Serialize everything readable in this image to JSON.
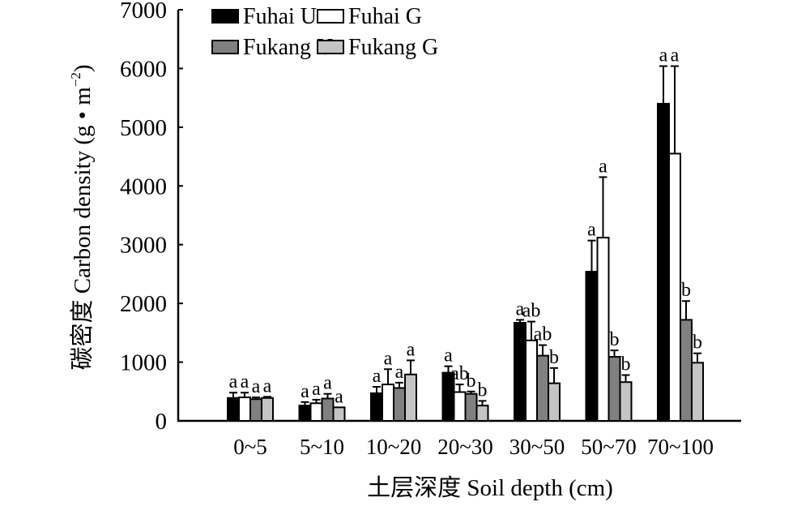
{
  "chart_data": {
    "type": "bar",
    "title": "",
    "xlabel": "土层深度 Soil depth (cm)",
    "ylabel": "碳密度 Carbon density (g • m⁻²)",
    "ylabel_parts": {
      "main": "碳密度 Carbon density (g • m",
      "sup": "−2",
      "close": ")"
    },
    "ylim": [
      0,
      7000
    ],
    "yticks": [
      0,
      1000,
      2000,
      3000,
      4000,
      5000,
      6000,
      7000
    ],
    "grid": false,
    "legend_position": "top-left",
    "categories": [
      "0~5",
      "5~10",
      "10~20",
      "20~30",
      "30~50",
      "50~70",
      "70~100"
    ],
    "series": [
      {
        "name": "Fuhai U",
        "color": "#000000",
        "values": [
          390,
          260,
          470,
          820,
          1670,
          2540,
          5400
        ],
        "error": [
          90,
          60,
          110,
          110,
          50,
          530,
          640
        ],
        "letters": [
          "a",
          "a",
          "a",
          "a",
          "a",
          "a",
          "a"
        ]
      },
      {
        "name": "Fuhai G",
        "color": "#ffffff",
        "values": [
          400,
          300,
          620,
          490,
          1370,
          3120,
          4550
        ],
        "error": [
          80,
          60,
          260,
          130,
          320,
          1030,
          1490
        ],
        "letters": [
          "a",
          "a",
          "a",
          "ab",
          "ab",
          "a",
          "a"
        ]
      },
      {
        "name": "Fukang U",
        "color": "#808080",
        "values": [
          370,
          380,
          560,
          460,
          1110,
          1090,
          1720
        ],
        "error": [
          30,
          80,
          90,
          40,
          180,
          110,
          320
        ],
        "letters": [
          "a",
          "a",
          "a",
          "b",
          "ab",
          "b",
          "b"
        ]
      },
      {
        "name": "Fukang G",
        "color": "#c4c4c4",
        "values": [
          390,
          230,
          790,
          260,
          640,
          660,
          990
        ],
        "error": [
          20,
          0,
          240,
          80,
          260,
          120,
          160
        ],
        "letters": [
          "a",
          "a",
          "a",
          "b",
          "b",
          "b",
          "b"
        ]
      }
    ]
  }
}
